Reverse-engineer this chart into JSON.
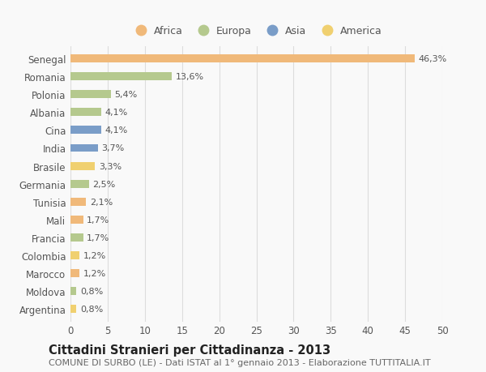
{
  "countries": [
    "Senegal",
    "Romania",
    "Polonia",
    "Albania",
    "Cina",
    "India",
    "Brasile",
    "Germania",
    "Tunisia",
    "Mali",
    "Francia",
    "Colombia",
    "Marocco",
    "Moldova",
    "Argentina"
  ],
  "values": [
    46.3,
    13.6,
    5.4,
    4.1,
    4.1,
    3.7,
    3.3,
    2.5,
    2.1,
    1.7,
    1.7,
    1.2,
    1.2,
    0.8,
    0.8
  ],
  "labels": [
    "46,3%",
    "13,6%",
    "5,4%",
    "4,1%",
    "4,1%",
    "3,7%",
    "3,3%",
    "2,5%",
    "2,1%",
    "1,7%",
    "1,7%",
    "1,2%",
    "1,2%",
    "0,8%",
    "0,8%"
  ],
  "colors": [
    "#f0b97a",
    "#b5c98e",
    "#b5c98e",
    "#b5c98e",
    "#7a9dc8",
    "#7a9dc8",
    "#f0d070",
    "#b5c98e",
    "#f0b97a",
    "#f0b97a",
    "#b5c98e",
    "#f0d070",
    "#f0b97a",
    "#b5c98e",
    "#f0d070"
  ],
  "legend_labels": [
    "Africa",
    "Europa",
    "Asia",
    "America"
  ],
  "legend_colors": [
    "#f0b97a",
    "#b5c98e",
    "#7a9dc8",
    "#f0d070"
  ],
  "title": "Cittadini Stranieri per Cittadinanza - 2013",
  "subtitle": "COMUNE DI SURBO (LE) - Dati ISTAT al 1° gennaio 2013 - Elaborazione TUTTITALIA.IT",
  "xlim": [
    0,
    50
  ],
  "xticks": [
    0,
    5,
    10,
    15,
    20,
    25,
    30,
    35,
    40,
    45,
    50
  ],
  "bg_color": "#f9f9f9",
  "grid_color": "#dddddd",
  "bar_height": 0.45,
  "title_fontsize": 10.5,
  "subtitle_fontsize": 8,
  "tick_fontsize": 8.5,
  "label_fontsize": 8,
  "legend_fontsize": 9
}
